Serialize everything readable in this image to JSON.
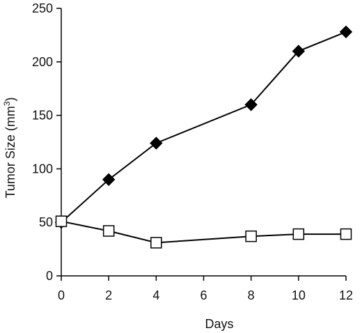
{
  "chart_data": {
    "type": "line",
    "xlabel": "Days",
    "ylabel_main": "Tumor Size (mm",
    "ylabel_sup": "3",
    "ylabel_close": ")",
    "xlim": [
      0,
      12
    ],
    "ylim": [
      0,
      250
    ],
    "x_ticks": [
      0,
      2,
      4,
      6,
      8,
      10,
      12
    ],
    "y_ticks": [
      0,
      50,
      100,
      150,
      200,
      250
    ],
    "grid": false,
    "series": [
      {
        "marker": "filled-diamond",
        "color": "#000000",
        "x": [
          0,
          2,
          4,
          8,
          10,
          12
        ],
        "y": [
          50,
          90,
          124,
          160,
          210,
          228
        ]
      },
      {
        "marker": "open-square",
        "color": "#000000",
        "x": [
          0,
          2,
          4,
          8,
          10,
          12
        ],
        "y": [
          51,
          42,
          31,
          37,
          39,
          39
        ]
      }
    ]
  }
}
